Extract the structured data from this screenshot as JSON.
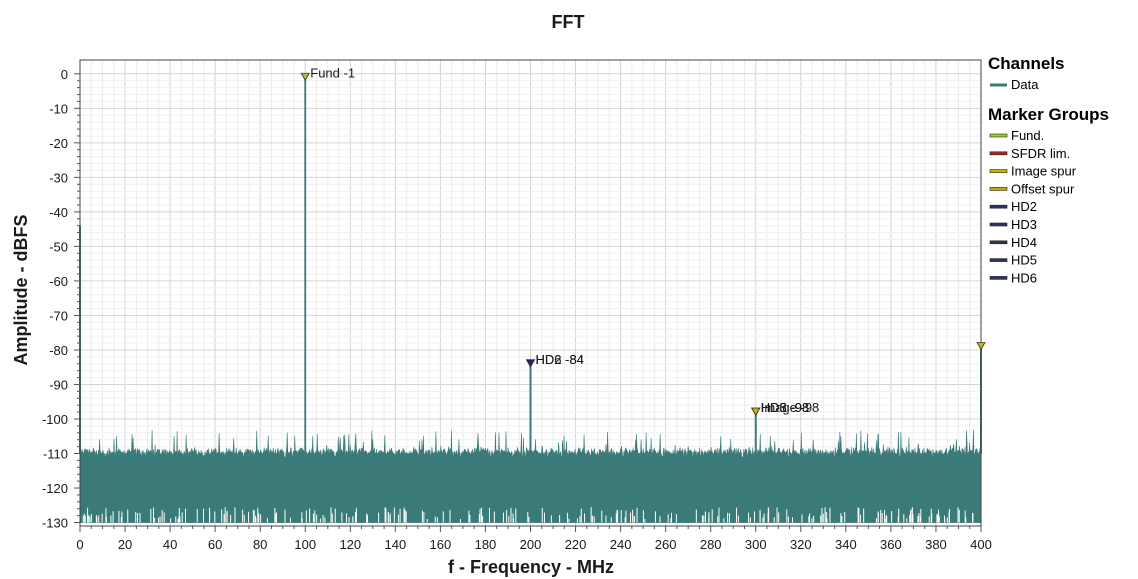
{
  "chart_data": {
    "type": "line",
    "title": "FFT",
    "xlabel": "f - Frequency - MHz",
    "ylabel": "Amplitude - dBFS",
    "xlim": [
      0,
      400
    ],
    "ylim": [
      -131,
      4
    ],
    "grid": true,
    "x_ticks": [
      "0",
      "20",
      "40",
      "60",
      "80",
      "100",
      "120",
      "140",
      "160",
      "180",
      "200",
      "220",
      "240",
      "260",
      "280",
      "300",
      "320",
      "340",
      "360",
      "380",
      "400"
    ],
    "y_ticks": [
      "0",
      "-10",
      "-20",
      "-30",
      "-40",
      "-50",
      "-60",
      "-70",
      "-80",
      "-90",
      "-100",
      "-110",
      "-120",
      "-130"
    ],
    "series": [
      {
        "name": "Data",
        "color": "#3a7a78",
        "noise_floor_top_range_dbfs": [
          -110,
          -103
        ],
        "noise_floor_bottom_dbfs": -130,
        "peaks": [
          {
            "x": 0,
            "y": -44
          },
          {
            "x": 100,
            "y": -1
          },
          {
            "x": 200,
            "y": -84
          },
          {
            "x": 300,
            "y": -98
          },
          {
            "x": 400,
            "y": -79
          }
        ]
      }
    ],
    "markers": [
      {
        "x": 100,
        "y": -1,
        "label": "Fund -1",
        "group": "Fund.",
        "color": "#9acd32"
      },
      {
        "x": 200,
        "y": -84,
        "label": "HD2 -84",
        "group": "HD2",
        "color": "#1e2a5a"
      },
      {
        "x": 200,
        "y": -84,
        "label": "HD6 -84",
        "group": "HD6",
        "color": "#1e2a5a"
      },
      {
        "x": 300,
        "y": -98,
        "label": "HD3 -98",
        "group": "HD3",
        "color": "#1e2a5a"
      },
      {
        "x": 300,
        "y": -98,
        "label": "HD5 -98",
        "group": "HD5",
        "color": "#1e2a5a"
      },
      {
        "x": 300,
        "y": -98,
        "label": "Image -98",
        "group": "Image spur",
        "color": "#d4b000"
      },
      {
        "x": 400,
        "y": -79,
        "label": "",
        "group": "Offset spur",
        "color": "#d4b000"
      }
    ],
    "legend": {
      "placement": "right",
      "channels_heading": "Channels",
      "channels": [
        {
          "label": "Data",
          "color": "#3a7a78"
        }
      ],
      "groups_heading": "Marker Groups",
      "groups": [
        {
          "label": "Fund.",
          "color": "#9acd32"
        },
        {
          "label": "SFDR lim.",
          "color": "#b22222"
        },
        {
          "label": "Image spur",
          "color": "#d4b000"
        },
        {
          "label": "Offset spur",
          "color": "#c8a800"
        },
        {
          "label": "HD2",
          "color": "#2a3560"
        },
        {
          "label": "HD3",
          "color": "#2a3560"
        },
        {
          "label": "HD4",
          "color": "#2a3560"
        },
        {
          "label": "HD5",
          "color": "#2a3560"
        },
        {
          "label": "HD6",
          "color": "#2a3560"
        }
      ]
    }
  }
}
